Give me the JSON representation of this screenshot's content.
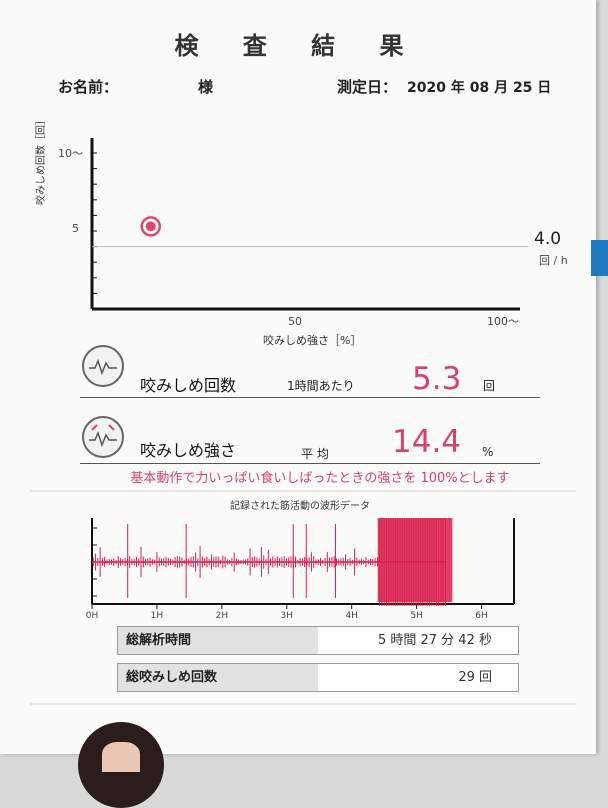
{
  "title": "検 査 結 果",
  "patient": {
    "name_label": "お名前：",
    "name_suffix": "様"
  },
  "exam_date": {
    "label": "測定日：",
    "value": "2020 年 08 月 25 日"
  },
  "scatter_chart": {
    "ylabel": "咬みしめ回数［回］",
    "xlabel": "咬みしめ強さ［%］",
    "y_ticks": [
      "10〜",
      "5"
    ],
    "x_ticks": [
      "50",
      "100〜"
    ],
    "ref_value_label": "4.0",
    "ref_unit_label": "回 / h"
  },
  "chart_data": [
    {
      "type": "scatter",
      "x": [
        14.4
      ],
      "y": [
        5.3
      ],
      "xlim": [
        0,
        100
      ],
      "ylim": [
        0,
        10
      ],
      "reference_line_y": 4.0,
      "marker_color": "#e0486f"
    },
    {
      "type": "line",
      "title": "記録された筋活動の波形データ",
      "x_ticks": [
        "0H",
        "1H",
        "2H",
        "3H",
        "4H",
        "5H",
        "6H"
      ],
      "xlim": [
        0,
        6.5
      ],
      "total_hours": 5.46,
      "burst_window": [
        4.4,
        5.55
      ],
      "color": "#d81e4c"
    }
  ],
  "metrics": {
    "count": {
      "label": "咬みしめ回数",
      "sub": "1時間あたり",
      "value": "5.3",
      "unit": "回"
    },
    "strength": {
      "label": "咬みしめ強さ",
      "sub": "平 均",
      "value": "14.4",
      "unit": "%"
    }
  },
  "note": "基本動作で力いっぱい食いしばったときの強さを 100%とします",
  "stats": {
    "total_time": {
      "label": "総解析時間",
      "value": "5 時間 27 分 42 秒"
    },
    "total_count": {
      "label": "総咬みしめ回数",
      "value": "29 回"
    }
  },
  "colors": {
    "accent": "#d6426a",
    "tab": "#1f7ac1"
  }
}
